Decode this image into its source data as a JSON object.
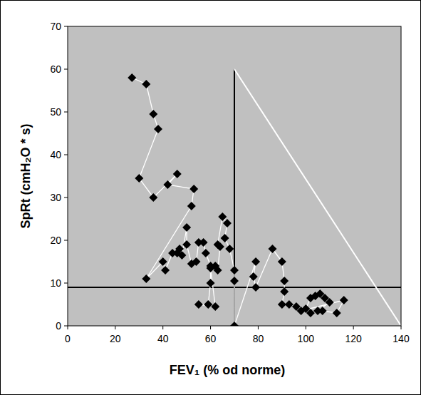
{
  "chart_data": {
    "type": "line",
    "xlabel": "FEV₁ (% od norme)",
    "ylabel": "SpRt (cmH₂O * s)",
    "xlim": [
      0,
      140
    ],
    "ylim": [
      0,
      70
    ],
    "xticks": [
      0,
      20,
      40,
      60,
      80,
      100,
      120,
      140
    ],
    "yticks": [
      0,
      10,
      20,
      30,
      40,
      50,
      60,
      70
    ],
    "grid": false,
    "series": [
      {
        "color": "#ffffff",
        "marker": "diamond",
        "x": [
          27,
          33,
          36,
          38,
          30,
          36,
          46,
          42,
          53,
          52,
          33,
          40,
          41,
          44,
          46,
          47,
          48,
          50,
          50,
          52,
          54,
          55,
          57,
          58,
          60,
          60,
          59,
          55,
          62,
          60,
          62,
          63,
          64,
          63,
          65,
          67,
          66,
          68,
          70,
          70,
          70,
          79,
          78,
          79,
          86,
          90,
          91,
          91,
          90,
          93,
          96,
          100,
          102,
          104,
          106,
          108,
          110,
          105,
          102,
          107,
          113,
          116,
          98
        ],
        "values": [
          58,
          56.5,
          49.5,
          46,
          34.5,
          30,
          35.5,
          33,
          32,
          28,
          11,
          15,
          13,
          17,
          17,
          18,
          16.5,
          23,
          19,
          14.5,
          15,
          19.5,
          19.5,
          17,
          14,
          10,
          5,
          5,
          4.5,
          13.5,
          14,
          13,
          18.5,
          19,
          25.5,
          24,
          20.5,
          18,
          13,
          10.5,
          0,
          15,
          11.5,
          9,
          18,
          15,
          10.5,
          8,
          5,
          5,
          4.5,
          4,
          6.5,
          7,
          7.5,
          6.5,
          5.5,
          3.5,
          3,
          3.5,
          3,
          6,
          3.5
        ]
      }
    ],
    "reference_lines": [
      {
        "x": [
          70,
          70
        ],
        "y": [
          0,
          60
        ],
        "color": "#000000"
      },
      {
        "x": [
          0,
          140
        ],
        "y": [
          9,
          9
        ],
        "color": "#000000"
      },
      {
        "x": [
          70,
          140
        ],
        "y": [
          60,
          0
        ],
        "color": "#ffffff"
      }
    ]
  }
}
